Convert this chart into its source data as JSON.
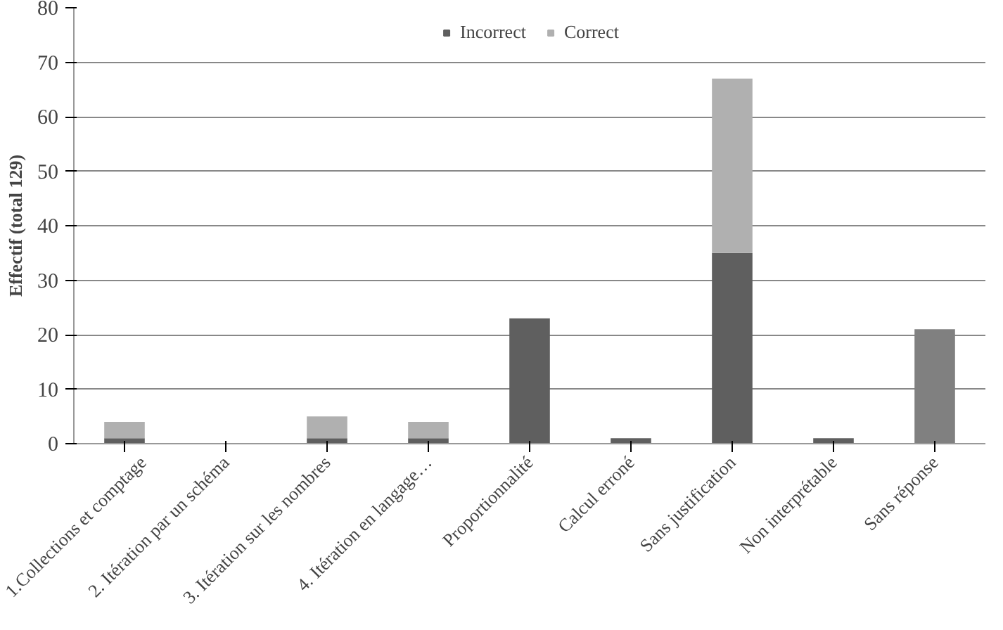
{
  "chart_data": {
    "type": "bar",
    "stacked": true,
    "ylabel": "Effectif (total 129)",
    "categories": [
      "1.Collections et comptage",
      "2. Itération par un schéma",
      "3. Itération sur les nombres",
      "4. Itération en langage…",
      "Proportionnalité",
      "Calcul erroné",
      "Sans justification",
      "Non interprétable",
      "Sans réponse"
    ],
    "series": [
      {
        "name": "Incorrect",
        "color": "#5f5f5f",
        "colors": [
          "#5f5f5f",
          "#5f5f5f",
          "#5f5f5f",
          "#5f5f5f",
          "#5f5f5f",
          "#5f5f5f",
          "#5f5f5f",
          "#5f5f5f",
          "#808080"
        ],
        "values": [
          1,
          0,
          1,
          1,
          23,
          1,
          35,
          1,
          21
        ]
      },
      {
        "name": "Correct",
        "color": "#b0b0b0",
        "values": [
          3,
          0,
          4,
          3,
          0,
          0,
          32,
          0,
          0
        ]
      }
    ],
    "ylim": [
      0,
      80
    ],
    "yticks": [
      0,
      10,
      20,
      30,
      40,
      50,
      60,
      70,
      80
    ],
    "grid": "y",
    "legend": "top"
  }
}
